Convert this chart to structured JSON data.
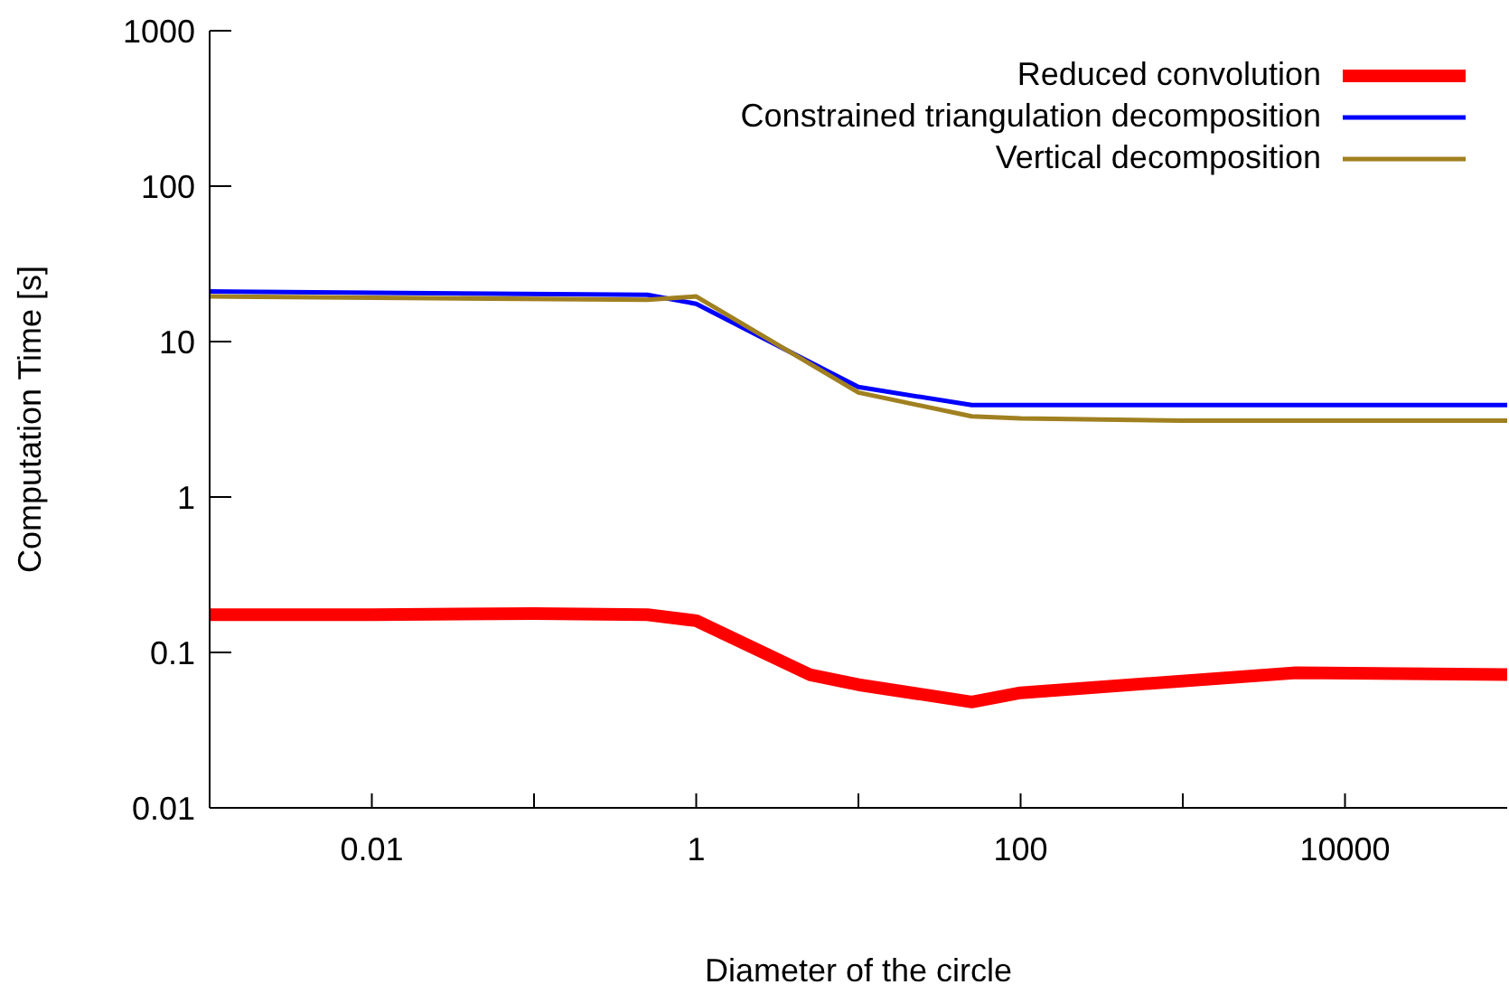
{
  "chart_data": {
    "type": "line",
    "xlabel": "Diameter of the circle",
    "ylabel": "Computation Time [s]",
    "log": "xy",
    "xlim": [
      0.001,
      100000
    ],
    "ylim": [
      0.01,
      1000
    ],
    "xticks": [
      {
        "value": 0.01,
        "label": "0.01"
      },
      {
        "value": 0.1,
        "label": null
      },
      {
        "value": 1,
        "label": "1"
      },
      {
        "value": 10,
        "label": null
      },
      {
        "value": 100,
        "label": "100"
      },
      {
        "value": 1000,
        "label": null
      },
      {
        "value": 10000,
        "label": "10000"
      }
    ],
    "yticks": [
      0.01,
      0.1,
      1,
      10,
      100,
      1000
    ],
    "legend": "top right",
    "grid": false,
    "marker": "none",
    "line_style": "solid",
    "series": [
      {
        "name": "Reduced convolution",
        "color": "#ff0000",
        "x": [
          0.001,
          0.01,
          0.1,
          0.5,
          1,
          5,
          10,
          50,
          100,
          5000,
          100000
        ],
        "values": [
          0.175,
          0.175,
          0.178,
          0.175,
          0.16,
          0.072,
          0.062,
          0.048,
          0.055,
          0.074,
          0.072
        ]
      },
      {
        "name": "Constrained triangulation decomposition",
        "color": "#0000ff",
        "x": [
          0.001,
          0.5,
          1,
          10,
          50,
          100000
        ],
        "values": [
          21,
          20,
          17.5,
          5.1,
          3.9,
          3.9
        ]
      },
      {
        "name": "Vertical decomposition",
        "color": "#a08020",
        "x": [
          0.001,
          0.5,
          1,
          10,
          50,
          100,
          1000,
          100000
        ],
        "values": [
          19.5,
          18.6,
          19.5,
          4.7,
          3.3,
          3.2,
          3.1,
          3.1
        ]
      }
    ]
  }
}
